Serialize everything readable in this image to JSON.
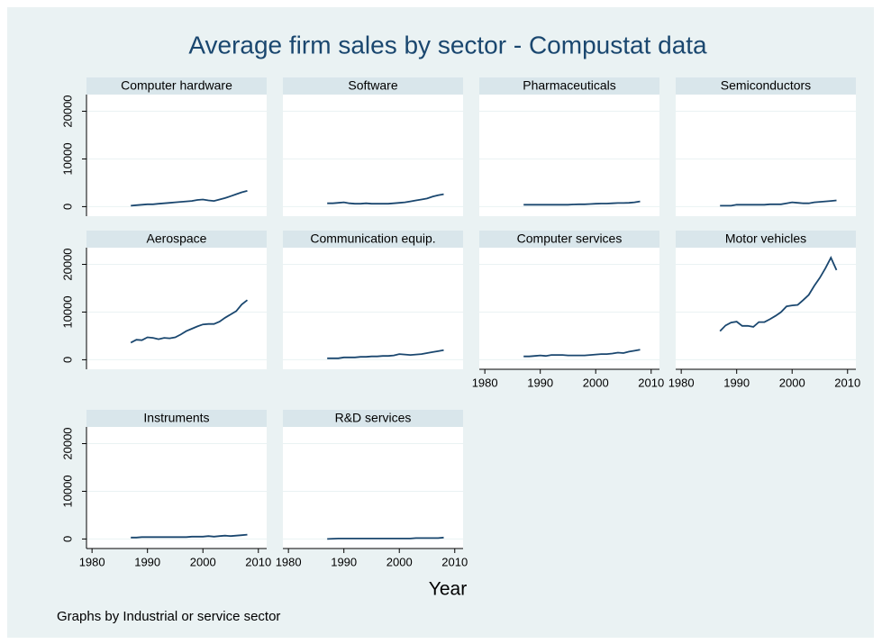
{
  "title": "Average firm sales by sector - Compustat data",
  "x_label": "Year",
  "note": "Graphs by Industrial or service sector",
  "chart_data": [
    {
      "type": "line",
      "title": "Computer hardware",
      "x": [
        1987,
        1988,
        1989,
        1990,
        1991,
        1992,
        1993,
        1994,
        1995,
        1996,
        1997,
        1998,
        1999,
        2000,
        2001,
        2002,
        2003,
        2004,
        2005,
        2006,
        2007,
        2008
      ],
      "values": [
        200,
        300,
        400,
        500,
        500,
        600,
        700,
        800,
        900,
        1000,
        1100,
        1200,
        1400,
        1500,
        1300,
        1200,
        1500,
        1800,
        2200,
        2600,
        3000,
        3300
      ],
      "color": "#1a476f",
      "xlim": [
        1979,
        2011.5
      ],
      "ylim": [
        -2000,
        23500
      ],
      "xticks": [
        1980,
        1990,
        2000,
        2010
      ],
      "yticks": [
        0,
        10000,
        20000
      ],
      "grid": true,
      "x_tick_labels": false,
      "y_tick_labels": true
    },
    {
      "type": "line",
      "title": "Software",
      "x": [
        1987,
        1988,
        1989,
        1990,
        1991,
        1992,
        1993,
        1994,
        1995,
        1996,
        1997,
        1998,
        1999,
        2000,
        2001,
        2002,
        2003,
        2004,
        2005,
        2006,
        2007,
        2008
      ],
      "values": [
        700,
        700,
        800,
        900,
        700,
        600,
        600,
        700,
        600,
        600,
        600,
        600,
        700,
        800,
        900,
        1100,
        1300,
        1500,
        1700,
        2100,
        2400,
        2600
      ],
      "color": "#1a476f",
      "xlim": [
        1979,
        2011.5
      ],
      "ylim": [
        -2000,
        23500
      ],
      "xticks": [
        1980,
        1990,
        2000,
        2010
      ],
      "yticks": [
        0,
        10000,
        20000
      ],
      "grid": true,
      "x_tick_labels": false,
      "y_tick_labels": false
    },
    {
      "type": "line",
      "title": "Pharmaceuticals",
      "x": [
        1987,
        1988,
        1989,
        1990,
        1991,
        1992,
        1993,
        1994,
        1995,
        1996,
        1997,
        1998,
        1999,
        2000,
        2001,
        2002,
        2003,
        2004,
        2005,
        2006,
        2007,
        2008
      ],
      "values": [
        400,
        400,
        400,
        400,
        400,
        400,
        400,
        400,
        400,
        450,
        500,
        500,
        550,
        600,
        650,
        650,
        700,
        750,
        750,
        800,
        900,
        1100
      ],
      "color": "#1a476f",
      "xlim": [
        1979,
        2011.5
      ],
      "ylim": [
        -2000,
        23500
      ],
      "xticks": [
        1980,
        1990,
        2000,
        2010
      ],
      "yticks": [
        0,
        10000,
        20000
      ],
      "grid": true,
      "x_tick_labels": false,
      "y_tick_labels": false
    },
    {
      "type": "line",
      "title": "Semiconductors",
      "x": [
        1987,
        1988,
        1989,
        1990,
        1991,
        1992,
        1993,
        1994,
        1995,
        1996,
        1997,
        1998,
        1999,
        2000,
        2001,
        2002,
        2003,
        2004,
        2005,
        2006,
        2007,
        2008
      ],
      "values": [
        200,
        200,
        200,
        400,
        400,
        400,
        400,
        400,
        400,
        500,
        500,
        500,
        700,
        900,
        800,
        700,
        700,
        900,
        1000,
        1100,
        1200,
        1300
      ],
      "color": "#1a476f",
      "xlim": [
        1979,
        2011.5
      ],
      "ylim": [
        -2000,
        23500
      ],
      "xticks": [
        1980,
        1990,
        2000,
        2010
      ],
      "yticks": [
        0,
        10000,
        20000
      ],
      "grid": true,
      "x_tick_labels": false,
      "y_tick_labels": false
    },
    {
      "type": "line",
      "title": "Aerospace",
      "x": [
        1987,
        1988,
        1989,
        1990,
        1991,
        1992,
        1993,
        1994,
        1995,
        1996,
        1997,
        1998,
        1999,
        2000,
        2001,
        2002,
        2003,
        2004,
        2005,
        2006,
        2007,
        2008
      ],
      "values": [
        3600,
        4200,
        4100,
        4700,
        4600,
        4300,
        4600,
        4500,
        4700,
        5300,
        6000,
        6500,
        7000,
        7400,
        7500,
        7500,
        8000,
        8800,
        9500,
        10200,
        11600,
        12500
      ],
      "color": "#1a476f",
      "xlim": [
        1979,
        2011.5
      ],
      "ylim": [
        -2000,
        23500
      ],
      "xticks": [
        1980,
        1990,
        2000,
        2010
      ],
      "yticks": [
        0,
        10000,
        20000
      ],
      "grid": true,
      "x_tick_labels": false,
      "y_tick_labels": true
    },
    {
      "type": "line",
      "title": "Communication equip.",
      "x": [
        1987,
        1988,
        1989,
        1990,
        1991,
        1992,
        1993,
        1994,
        1995,
        1996,
        1997,
        1998,
        1999,
        2000,
        2001,
        2002,
        2003,
        2004,
        2005,
        2006,
        2007,
        2008
      ],
      "values": [
        300,
        300,
        300,
        500,
        500,
        500,
        600,
        600,
        700,
        700,
        800,
        800,
        900,
        1200,
        1100,
        1000,
        1100,
        1200,
        1400,
        1600,
        1800,
        2000
      ],
      "color": "#1a476f",
      "xlim": [
        1979,
        2011.5
      ],
      "ylim": [
        -2000,
        23500
      ],
      "xticks": [
        1980,
        1990,
        2000,
        2010
      ],
      "yticks": [
        0,
        10000,
        20000
      ],
      "grid": true,
      "x_tick_labels": false,
      "y_tick_labels": false
    },
    {
      "type": "line",
      "title": "Computer services",
      "x": [
        1987,
        1988,
        1989,
        1990,
        1991,
        1992,
        1993,
        1994,
        1995,
        1996,
        1997,
        1998,
        1999,
        2000,
        2001,
        2002,
        2003,
        2004,
        2005,
        2006,
        2007,
        2008
      ],
      "values": [
        700,
        700,
        800,
        900,
        800,
        1000,
        1000,
        1000,
        900,
        900,
        900,
        900,
        1000,
        1100,
        1200,
        1200,
        1300,
        1500,
        1400,
        1700,
        1900,
        2100
      ],
      "color": "#1a476f",
      "xlim": [
        1979,
        2011.5
      ],
      "ylim": [
        -2000,
        23500
      ],
      "xticks": [
        1980,
        1990,
        2000,
        2010
      ],
      "yticks": [
        0,
        10000,
        20000
      ],
      "grid": true,
      "x_tick_labels": true,
      "y_tick_labels": false
    },
    {
      "type": "line",
      "title": "Motor vehicles",
      "x": [
        1987,
        1988,
        1989,
        1990,
        1991,
        1992,
        1993,
        1994,
        1995,
        1996,
        1997,
        1998,
        1999,
        2000,
        2001,
        2002,
        2003,
        2004,
        2005,
        2006,
        2007,
        2008
      ],
      "values": [
        6000,
        7200,
        7800,
        8000,
        7100,
        7100,
        6900,
        7900,
        7900,
        8500,
        9200,
        10000,
        11200,
        11400,
        11500,
        12500,
        13600,
        15500,
        17200,
        19200,
        21400,
        18800
      ],
      "color": "#1a476f",
      "xlim": [
        1979,
        2011.5
      ],
      "ylim": [
        -2000,
        23500
      ],
      "xticks": [
        1980,
        1990,
        2000,
        2010
      ],
      "yticks": [
        0,
        10000,
        20000
      ],
      "grid": true,
      "x_tick_labels": true,
      "y_tick_labels": false
    },
    {
      "type": "line",
      "title": "Instruments",
      "x": [
        1987,
        1988,
        1989,
        1990,
        1991,
        1992,
        1993,
        1994,
        1995,
        1996,
        1997,
        1998,
        1999,
        2000,
        2001,
        2002,
        2003,
        2004,
        2005,
        2006,
        2007,
        2008
      ],
      "values": [
        300,
        300,
        400,
        400,
        400,
        400,
        400,
        400,
        400,
        400,
        400,
        500,
        500,
        500,
        600,
        500,
        600,
        700,
        600,
        700,
        800,
        900
      ],
      "color": "#1a476f",
      "xlim": [
        1979,
        2011.5
      ],
      "ylim": [
        -2000,
        23500
      ],
      "xticks": [
        1980,
        1990,
        2000,
        2010
      ],
      "yticks": [
        0,
        10000,
        20000
      ],
      "grid": true,
      "x_tick_labels": true,
      "y_tick_labels": true
    },
    {
      "type": "line",
      "title": "R&D services",
      "x": [
        1987,
        1988,
        1989,
        1990,
        1991,
        1992,
        1993,
        1994,
        1995,
        1996,
        1997,
        1998,
        1999,
        2000,
        2001,
        2002,
        2003,
        2004,
        2005,
        2006,
        2007,
        2008
      ],
      "values": [
        0,
        50,
        100,
        100,
        100,
        100,
        100,
        100,
        100,
        100,
        100,
        100,
        100,
        100,
        100,
        100,
        200,
        200,
        200,
        200,
        200,
        300
      ],
      "color": "#1a476f",
      "xlim": [
        1979,
        2011.5
      ],
      "ylim": [
        -2000,
        23500
      ],
      "xticks": [
        1980,
        1990,
        2000,
        2010
      ],
      "yticks": [
        0,
        10000,
        20000
      ],
      "grid": true,
      "x_tick_labels": true,
      "y_tick_labels": false
    }
  ]
}
